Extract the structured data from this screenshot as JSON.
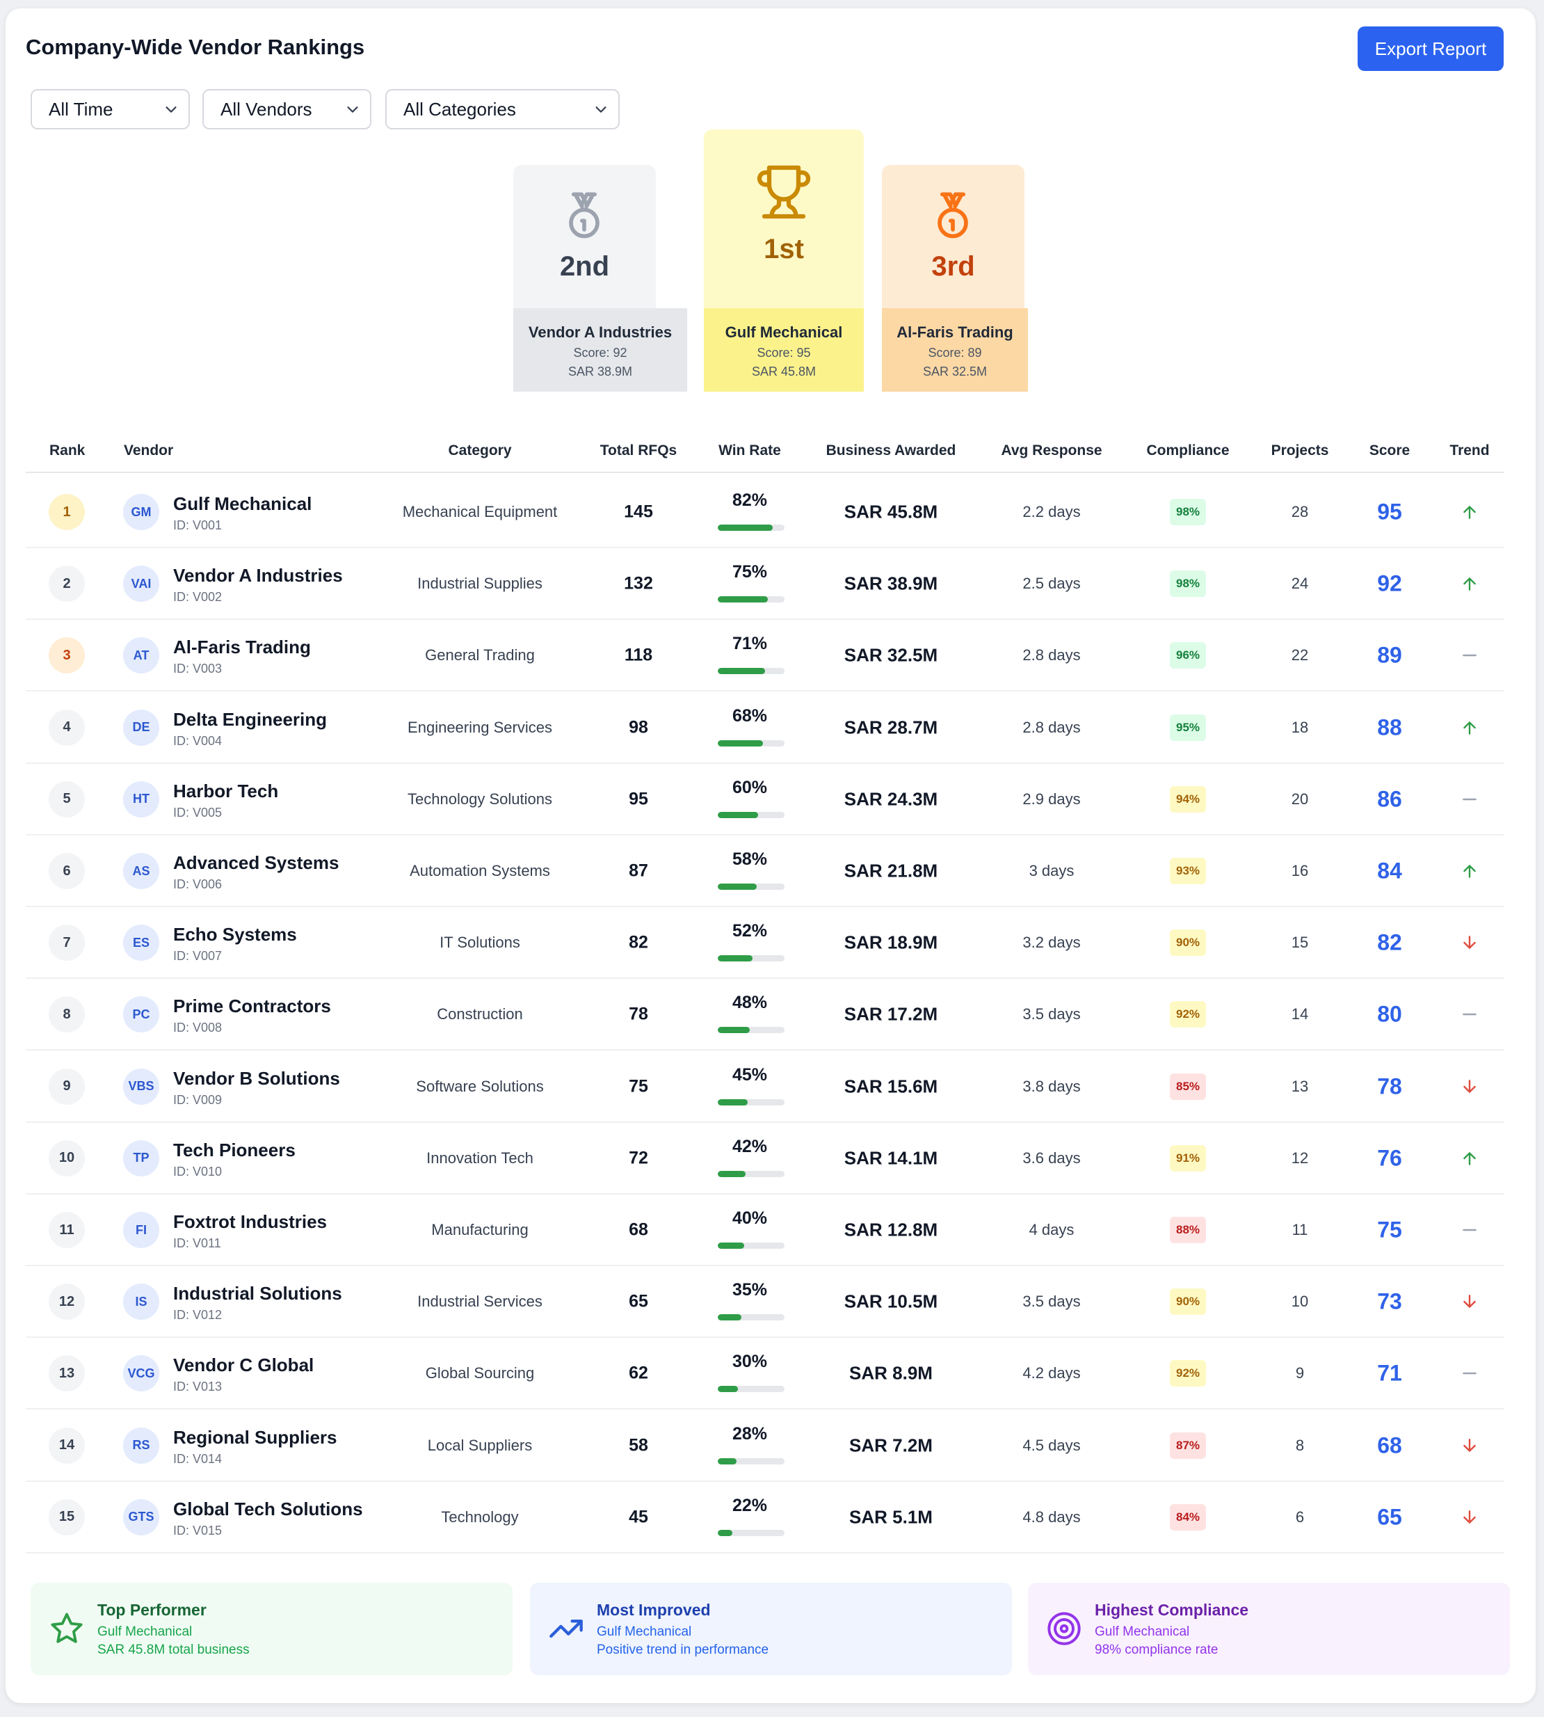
{
  "header": {
    "title": "Company-Wide Vendor Rankings",
    "export_label": "Export Report"
  },
  "filters": [
    {
      "value": "All Time"
    },
    {
      "value": "All Vendors"
    },
    {
      "value": "All Categories"
    }
  ],
  "podium": {
    "second": {
      "place": "2nd",
      "vendor": "Vendor A Industries",
      "score": "Score: 92",
      "business": "SAR 38.9M",
      "icon": "medal-icon"
    },
    "first": {
      "place": "1st",
      "vendor": "Gulf Mechanical",
      "score": "Score: 95",
      "business": "SAR 45.8M",
      "icon": "trophy-icon"
    },
    "third": {
      "place": "3rd",
      "vendor": "Al-Faris Trading",
      "score": "Score: 89",
      "business": "SAR 32.5M",
      "icon": "medal-icon"
    }
  },
  "table": {
    "columns": [
      "Rank",
      "Vendor",
      "Category",
      "Total RFQs",
      "Win Rate",
      "Business Awarded",
      "Avg Response",
      "Compliance",
      "Projects",
      "Score",
      "Trend"
    ],
    "rows": [
      {
        "rank": "1",
        "initials": "GM",
        "name": "Gulf Mechanical",
        "id": "ID: V001",
        "category": "Mechanical Equipment",
        "rfqs": "145",
        "win_rate": "82%",
        "win_pct": 82,
        "business": "SAR 45.8M",
        "response": "2.2 days",
        "compliance": "98%",
        "compliance_level": "high",
        "projects": "28",
        "score": "95",
        "trend": "up"
      },
      {
        "rank": "2",
        "initials": "VAI",
        "name": "Vendor A Industries",
        "id": "ID: V002",
        "category": "Industrial Supplies",
        "rfqs": "132",
        "win_rate": "75%",
        "win_pct": 75,
        "business": "SAR 38.9M",
        "response": "2.5 days",
        "compliance": "98%",
        "compliance_level": "high",
        "projects": "24",
        "score": "92",
        "trend": "up"
      },
      {
        "rank": "3",
        "initials": "AT",
        "name": "Al-Faris Trading",
        "id": "ID: V003",
        "category": "General Trading",
        "rfqs": "118",
        "win_rate": "71%",
        "win_pct": 71,
        "business": "SAR 32.5M",
        "response": "2.8 days",
        "compliance": "96%",
        "compliance_level": "high",
        "projects": "22",
        "score": "89",
        "trend": "flat"
      },
      {
        "rank": "4",
        "initials": "DE",
        "name": "Delta Engineering",
        "id": "ID: V004",
        "category": "Engineering Services",
        "rfqs": "98",
        "win_rate": "68%",
        "win_pct": 68,
        "business": "SAR 28.7M",
        "response": "2.8 days",
        "compliance": "95%",
        "compliance_level": "high",
        "projects": "18",
        "score": "88",
        "trend": "up"
      },
      {
        "rank": "5",
        "initials": "HT",
        "name": "Harbor Tech",
        "id": "ID: V005",
        "category": "Technology Solutions",
        "rfqs": "95",
        "win_rate": "60%",
        "win_pct": 60,
        "business": "SAR 24.3M",
        "response": "2.9 days",
        "compliance": "94%",
        "compliance_level": "medium",
        "projects": "20",
        "score": "86",
        "trend": "flat"
      },
      {
        "rank": "6",
        "initials": "AS",
        "name": "Advanced Systems",
        "id": "ID: V006",
        "category": "Automation Systems",
        "rfqs": "87",
        "win_rate": "58%",
        "win_pct": 58,
        "business": "SAR 21.8M",
        "response": "3 days",
        "compliance": "93%",
        "compliance_level": "medium",
        "projects": "16",
        "score": "84",
        "trend": "up"
      },
      {
        "rank": "7",
        "initials": "ES",
        "name": "Echo Systems",
        "id": "ID: V007",
        "category": "IT Solutions",
        "rfqs": "82",
        "win_rate": "52%",
        "win_pct": 52,
        "business": "SAR 18.9M",
        "response": "3.2 days",
        "compliance": "90%",
        "compliance_level": "medium",
        "projects": "15",
        "score": "82",
        "trend": "down"
      },
      {
        "rank": "8",
        "initials": "PC",
        "name": "Prime Contractors",
        "id": "ID: V008",
        "category": "Construction",
        "rfqs": "78",
        "win_rate": "48%",
        "win_pct": 48,
        "business": "SAR 17.2M",
        "response": "3.5 days",
        "compliance": "92%",
        "compliance_level": "medium",
        "projects": "14",
        "score": "80",
        "trend": "flat"
      },
      {
        "rank": "9",
        "initials": "VBS",
        "name": "Vendor B Solutions",
        "id": "ID: V009",
        "category": "Software Solutions",
        "rfqs": "75",
        "win_rate": "45%",
        "win_pct": 45,
        "business": "SAR 15.6M",
        "response": "3.8 days",
        "compliance": "85%",
        "compliance_level": "low",
        "projects": "13",
        "score": "78",
        "trend": "down"
      },
      {
        "rank": "10",
        "initials": "TP",
        "name": "Tech Pioneers",
        "id": "ID: V010",
        "category": "Innovation Tech",
        "rfqs": "72",
        "win_rate": "42%",
        "win_pct": 42,
        "business": "SAR 14.1M",
        "response": "3.6 days",
        "compliance": "91%",
        "compliance_level": "medium",
        "projects": "12",
        "score": "76",
        "trend": "up"
      },
      {
        "rank": "11",
        "initials": "FI",
        "name": "Foxtrot Industries",
        "id": "ID: V011",
        "category": "Manufacturing",
        "rfqs": "68",
        "win_rate": "40%",
        "win_pct": 40,
        "business": "SAR 12.8M",
        "response": "4 days",
        "compliance": "88%",
        "compliance_level": "low",
        "projects": "11",
        "score": "75",
        "trend": "flat"
      },
      {
        "rank": "12",
        "initials": "IS",
        "name": "Industrial Solutions",
        "id": "ID: V012",
        "category": "Industrial Services",
        "rfqs": "65",
        "win_rate": "35%",
        "win_pct": 35,
        "business": "SAR 10.5M",
        "response": "3.5 days",
        "compliance": "90%",
        "compliance_level": "medium",
        "projects": "10",
        "score": "73",
        "trend": "down"
      },
      {
        "rank": "13",
        "initials": "VCG",
        "name": "Vendor C Global",
        "id": "ID: V013",
        "category": "Global Sourcing",
        "rfqs": "62",
        "win_rate": "30%",
        "win_pct": 30,
        "business": "SAR 8.9M",
        "response": "4.2 days",
        "compliance": "92%",
        "compliance_level": "medium",
        "projects": "9",
        "score": "71",
        "trend": "flat"
      },
      {
        "rank": "14",
        "initials": "RS",
        "name": "Regional Suppliers",
        "id": "ID: V014",
        "category": "Local Suppliers",
        "rfqs": "58",
        "win_rate": "28%",
        "win_pct": 28,
        "business": "SAR 7.2M",
        "response": "4.5 days",
        "compliance": "87%",
        "compliance_level": "low",
        "projects": "8",
        "score": "68",
        "trend": "down"
      },
      {
        "rank": "15",
        "initials": "GTS",
        "name": "Global Tech Solutions",
        "id": "ID: V015",
        "category": "Technology",
        "rfqs": "45",
        "win_rate": "22%",
        "win_pct": 22,
        "business": "SAR 5.1M",
        "response": "4.8 days",
        "compliance": "84%",
        "compliance_level": "low",
        "projects": "6",
        "score": "65",
        "trend": "down"
      }
    ]
  },
  "highlights": [
    {
      "title": "Top Performer",
      "vendor": "Gulf Mechanical",
      "detail": "SAR 45.8M total business",
      "icon": "star-icon"
    },
    {
      "title": "Most Improved",
      "vendor": "Gulf Mechanical",
      "detail": "Positive trend in performance",
      "icon": "trending-up-icon"
    },
    {
      "title": "Highest Compliance",
      "vendor": "Gulf Mechanical",
      "detail": "98% compliance rate",
      "icon": "target-icon"
    }
  ],
  "colors": {
    "accent": "#2b63f0",
    "score": "#2f62e8",
    "win_bar": "#2f9d47",
    "trend_up": "#2f9d47",
    "trend_down": "#e24a3b",
    "trend_flat": "#9ca3af"
  }
}
